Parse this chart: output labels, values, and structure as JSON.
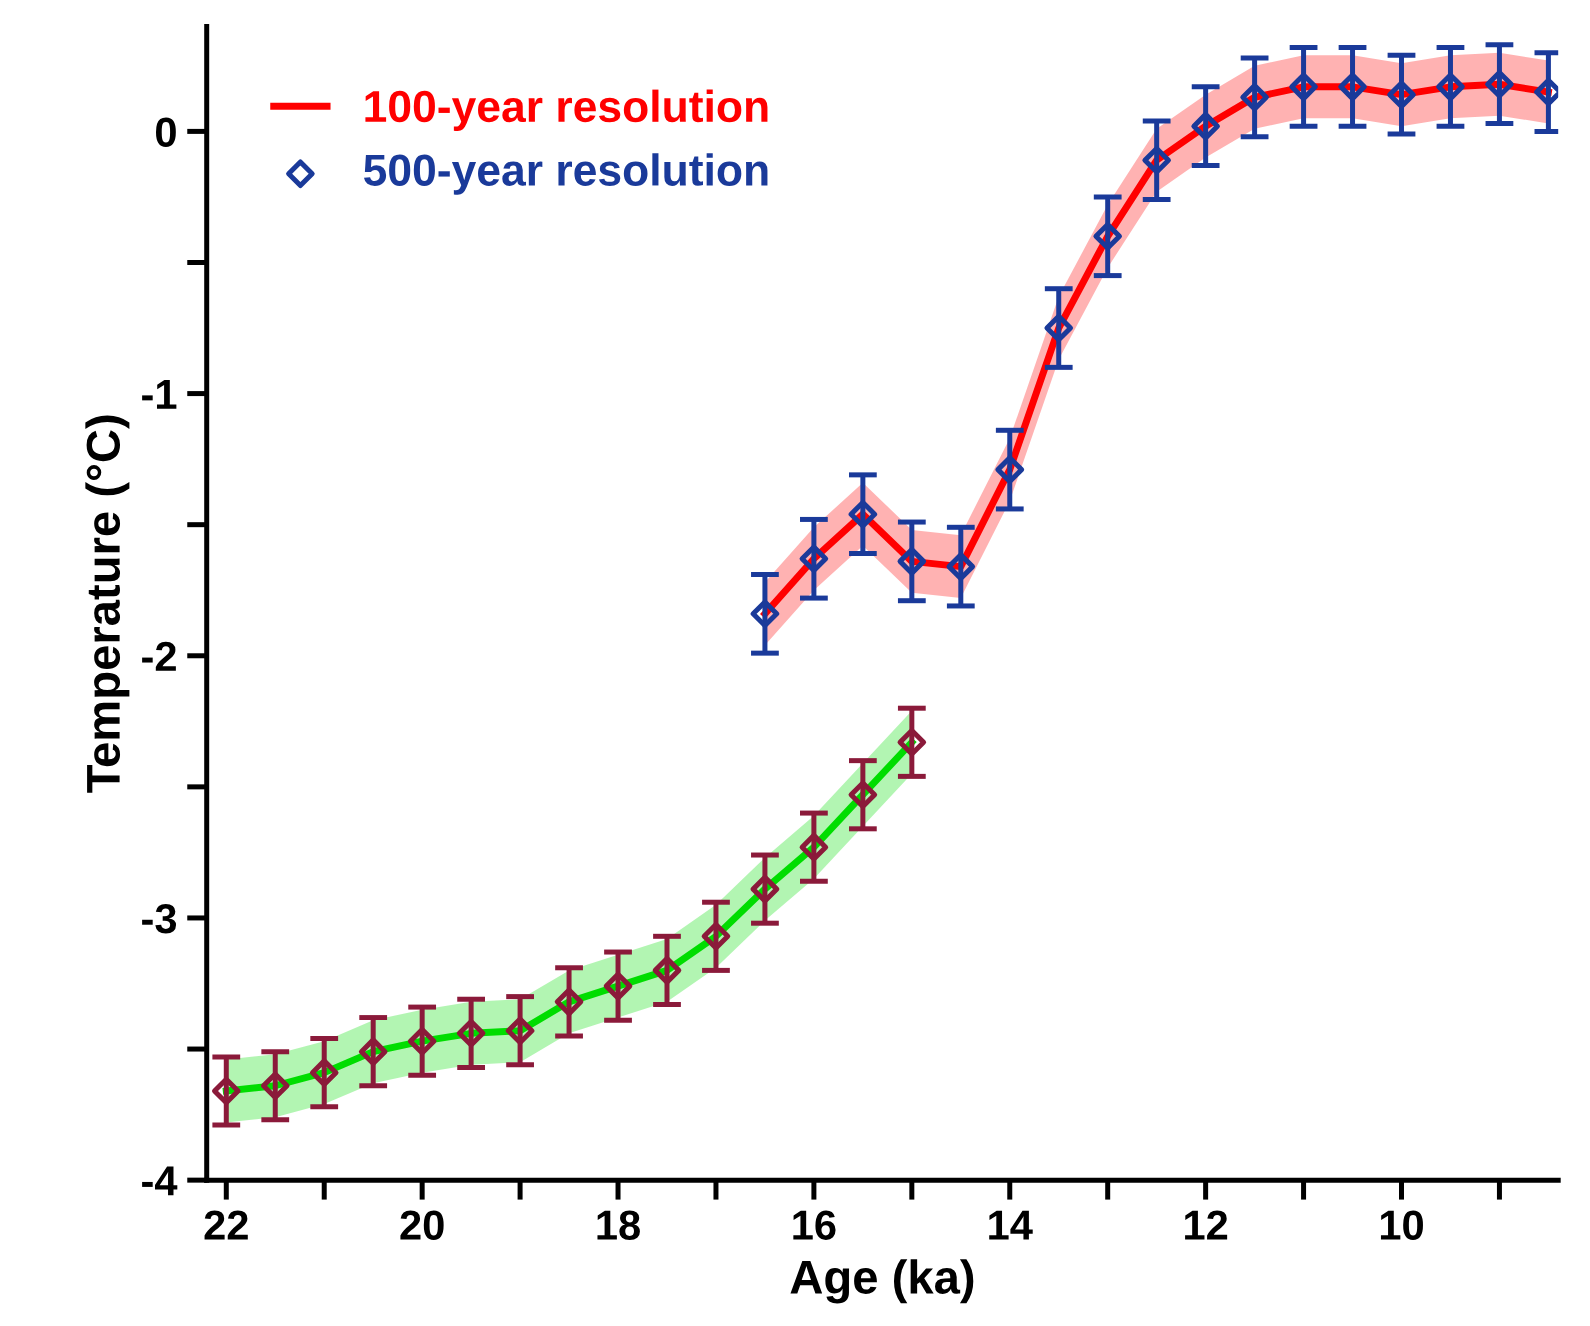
{
  "chart_data": {
    "type": "line",
    "xlabel": "Age (ka)",
    "ylabel": "Temperature (°C)",
    "xlim": [
      22.2,
      8.4
    ],
    "xticks": [
      22,
      {
        "value": 21,
        "label": null
      },
      20,
      {
        "value": 19,
        "label": null
      },
      18,
      {
        "value": 17,
        "label": null
      },
      16,
      {
        "value": 15,
        "label": null
      },
      14,
      {
        "value": 13,
        "label": null
      },
      12,
      {
        "value": 11,
        "label": null
      },
      10,
      {
        "value": 9,
        "label": null
      }
    ],
    "ylim": [
      -4,
      0.4
    ],
    "yticks": [
      -4,
      {
        "value": -3.5,
        "label": null
      },
      -3,
      {
        "value": -2.5,
        "label": null
      },
      -2,
      {
        "value": -1.5,
        "label": null
      },
      -1,
      {
        "value": -0.5,
        "label": null
      },
      0
    ],
    "grid": false,
    "legend": "top left",
    "line_style": "solid",
    "series": [
      {
        "name": "100-year resolution",
        "color": "#ff0000",
        "marker": "none",
        "x": [
          16.5,
          16,
          15.5,
          15,
          14.5,
          14,
          13.5,
          13,
          12.5,
          12,
          11.5,
          11,
          10.5,
          10,
          9.5,
          9,
          8.5
        ],
        "values": [
          -1.84,
          -1.63,
          -1.46,
          -1.64,
          -1.66,
          -1.29,
          -0.75,
          -0.4,
          -0.11,
          0.02,
          0.13,
          0.17,
          0.17,
          0.14,
          0.17,
          0.18,
          0.15
        ],
        "lower": [
          -1.96,
          -1.75,
          -1.58,
          -1.76,
          -1.78,
          -1.41,
          -0.87,
          -0.52,
          -0.23,
          -0.1,
          0.01,
          0.05,
          0.05,
          0.02,
          0.05,
          0.06,
          0.03
        ],
        "upper": [
          -1.72,
          -1.51,
          -1.34,
          -1.52,
          -1.54,
          -1.17,
          -0.63,
          -0.28,
          0.01,
          0.14,
          0.25,
          0.29,
          0.29,
          0.26,
          0.29,
          0.3,
          0.27
        ]
      },
      {
        "type": "scatter",
        "name": "500-year resolution",
        "color": "#1a3a9a",
        "marker": "diamond",
        "x": [
          16.5,
          16,
          15.5,
          15,
          14.5,
          14,
          13.5,
          13,
          12.5,
          12,
          11.5,
          11,
          10.5,
          10,
          9.5,
          9,
          8.5
        ],
        "values": [
          -1.84,
          -1.63,
          -1.46,
          -1.64,
          -1.66,
          -1.29,
          -0.75,
          -0.4,
          -0.11,
          0.02,
          0.13,
          0.17,
          0.17,
          0.14,
          0.17,
          0.18,
          0.15
        ],
        "errors": [
          0.15,
          0.15,
          0.15,
          0.15,
          0.15,
          0.15,
          0.15,
          0.15,
          0.15,
          0.15,
          0.15,
          0.15,
          0.15,
          0.15,
          0.15,
          0.15,
          0.15
        ]
      },
      {
        "color": "#00dd00",
        "marker": "none",
        "x": [
          22,
          21.5,
          21,
          20.5,
          20,
          19.5,
          19,
          18.5,
          18,
          17.5,
          17,
          16.5,
          16,
          15.5,
          15
        ],
        "values": [
          -3.66,
          -3.64,
          -3.59,
          -3.51,
          -3.47,
          -3.44,
          -3.43,
          -3.32,
          -3.26,
          -3.2,
          -3.07,
          -2.89,
          -2.73,
          -2.53,
          -2.33
        ],
        "lower": [
          -3.78,
          -3.76,
          -3.71,
          -3.63,
          -3.59,
          -3.56,
          -3.55,
          -3.44,
          -3.38,
          -3.32,
          -3.19,
          -3.01,
          -2.85,
          -2.65,
          -2.45
        ],
        "upper": [
          -3.54,
          -3.52,
          -3.47,
          -3.39,
          -3.35,
          -3.32,
          -3.31,
          -3.2,
          -3.14,
          -3.08,
          -2.95,
          -2.77,
          -2.61,
          -2.41,
          -2.21
        ]
      },
      {
        "type": "scatter",
        "color": "#8b1a3a",
        "marker": "diamond",
        "x": [
          22,
          21.5,
          21,
          20.5,
          20,
          19.5,
          19,
          18.5,
          18,
          17.5,
          17,
          16.5,
          16,
          15.5,
          15
        ],
        "values": [
          -3.66,
          -3.64,
          -3.59,
          -3.51,
          -3.47,
          -3.44,
          -3.43,
          -3.32,
          -3.26,
          -3.2,
          -3.07,
          -2.89,
          -2.73,
          -2.53,
          -2.33
        ],
        "errors": [
          0.13,
          0.13,
          0.13,
          0.13,
          0.13,
          0.13,
          0.13,
          0.13,
          0.13,
          0.13,
          0.13,
          0.13,
          0.13,
          0.13,
          0.13
        ]
      }
    ]
  }
}
